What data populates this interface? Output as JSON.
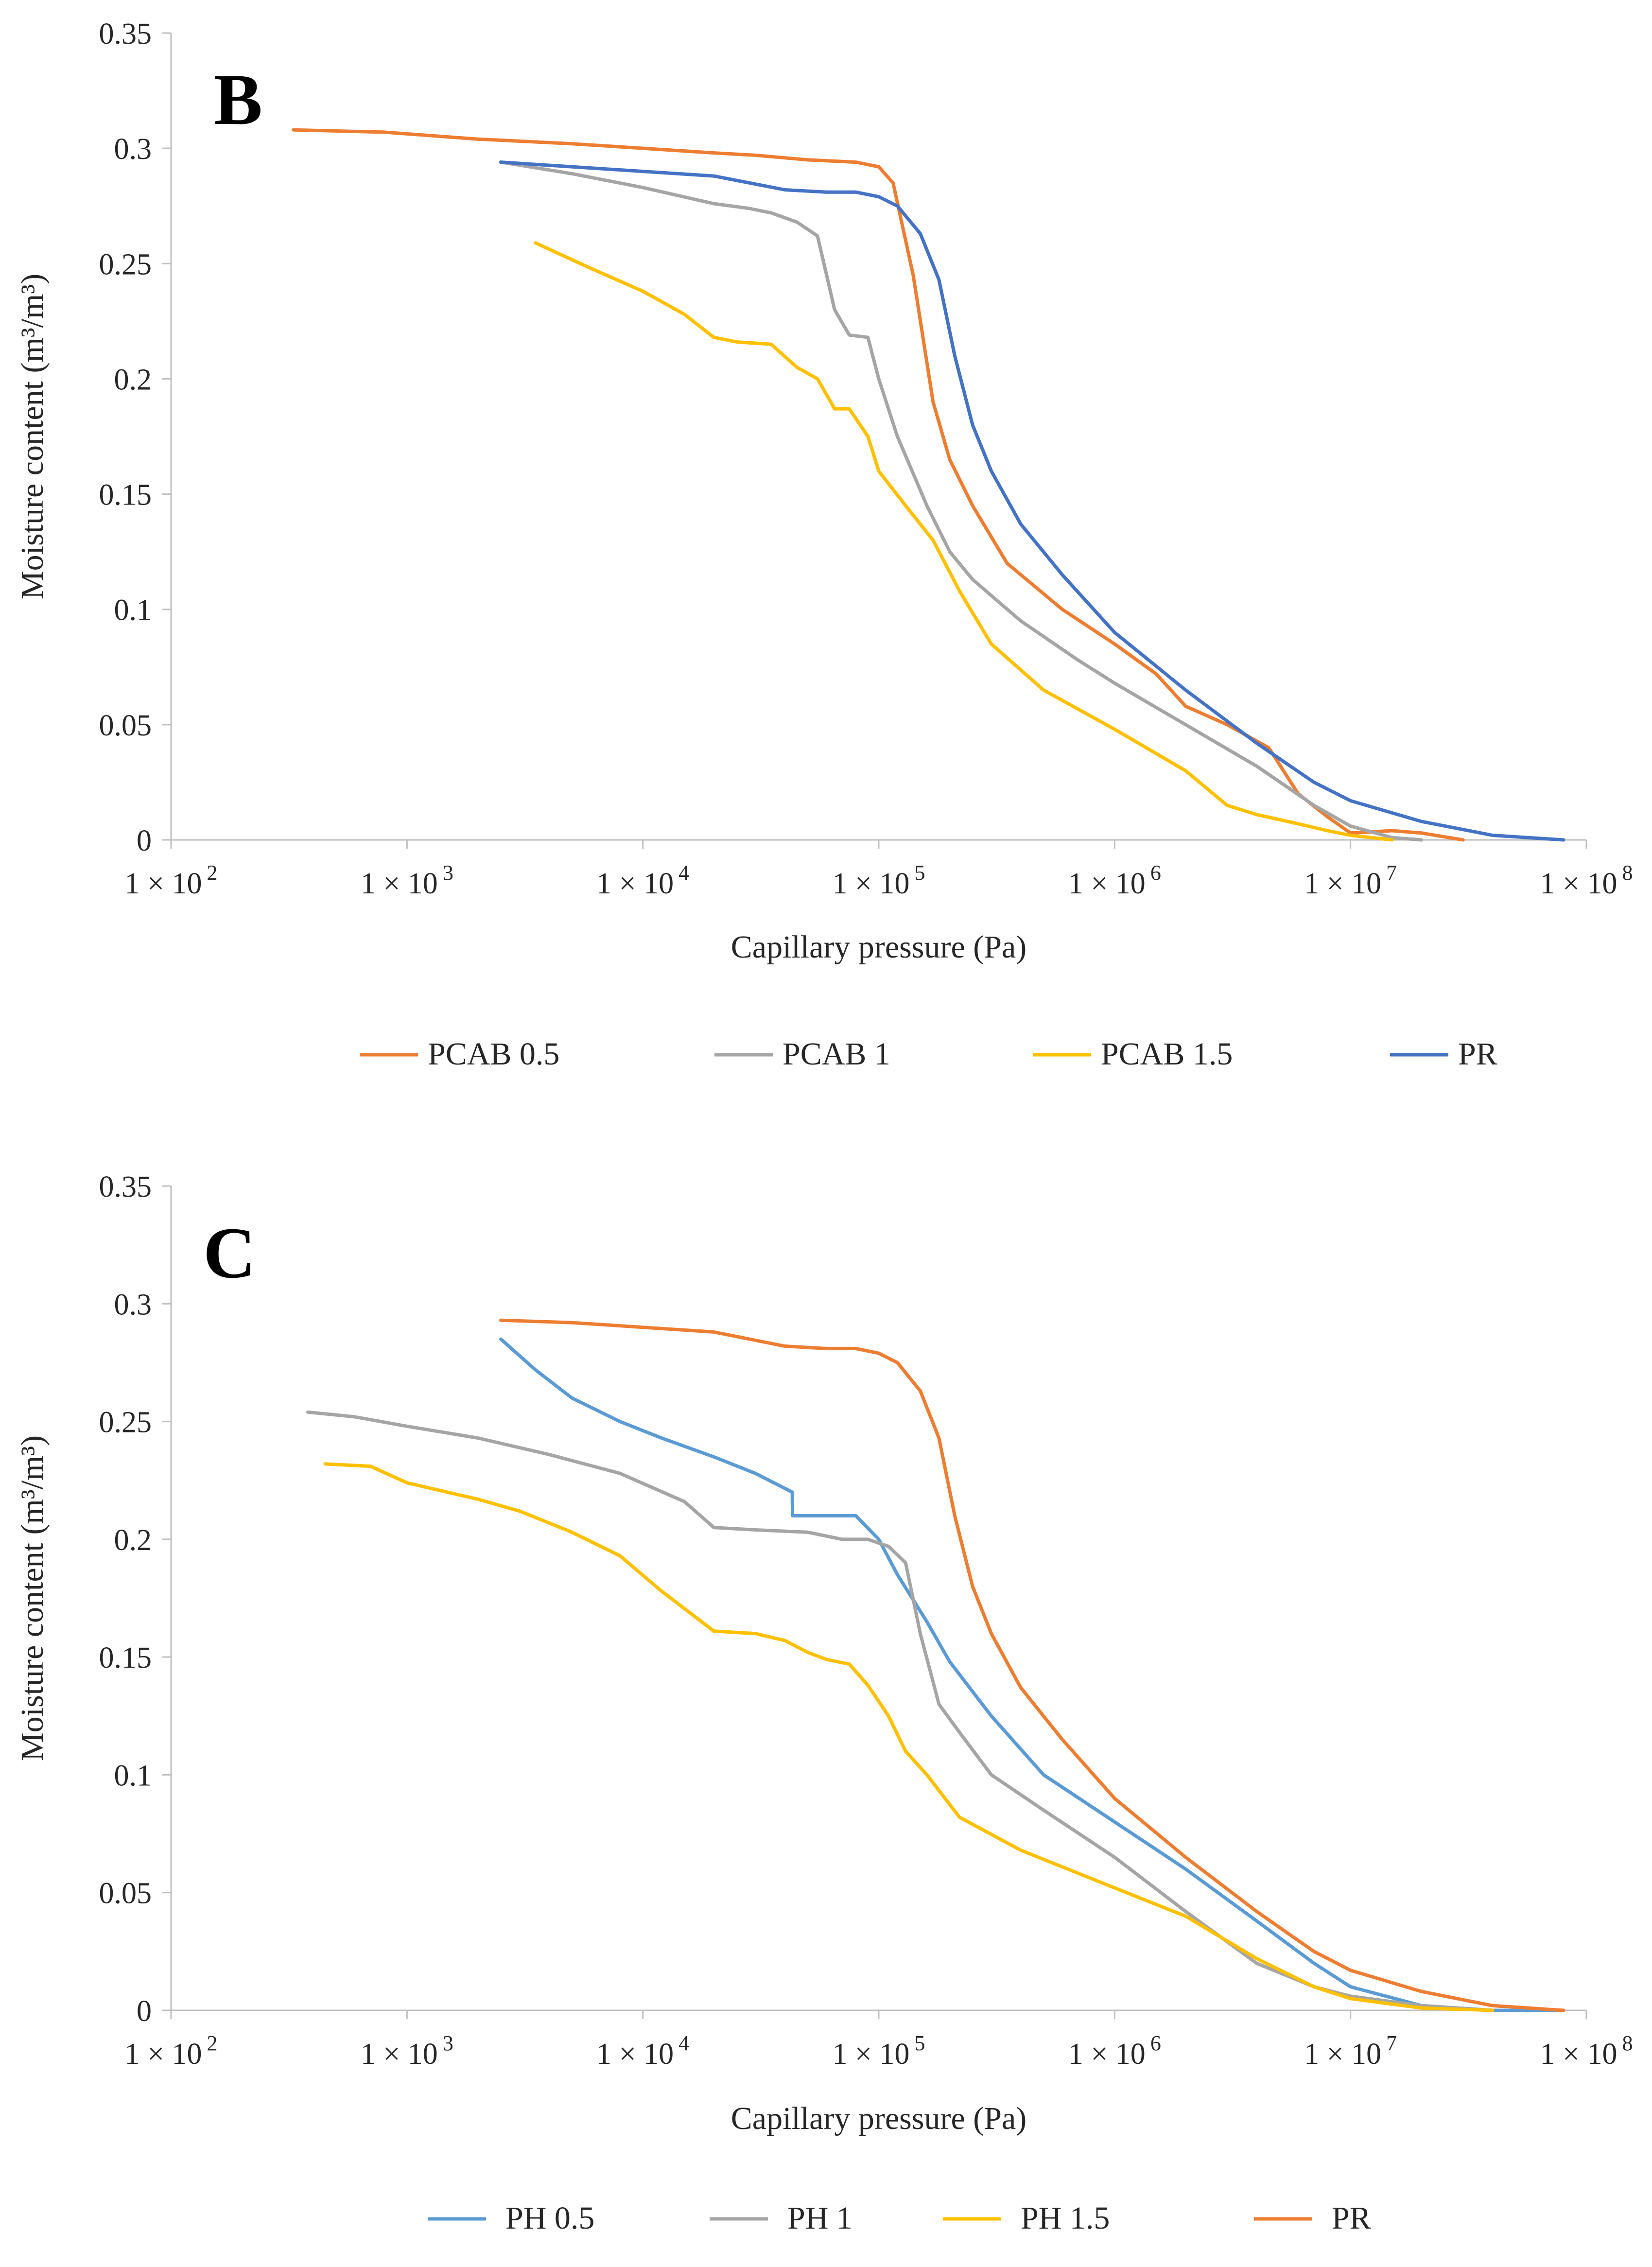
{
  "chart_data": [
    {
      "type": "line",
      "panel_label": "B",
      "xlabel": "Capillary pressure (Pa)",
      "ylabel": "Moisture content (m³/m³)",
      "xscale": "log",
      "xlim": [
        100,
        100000000
      ],
      "ylim": [
        0,
        0.35
      ],
      "yticks": [
        "0",
        "0.05",
        "0.1",
        "0.15",
        "0.2",
        "0.25",
        "0.3",
        "0.35"
      ],
      "xticks": [
        {
          "base": "1 × 10",
          "exp": "2"
        },
        {
          "base": "1 × 10",
          "exp": "3"
        },
        {
          "base": "1 × 10",
          "exp": "4"
        },
        {
          "base": "1 × 10",
          "exp": "5"
        },
        {
          "base": "1 × 10",
          "exp": "6"
        },
        {
          "base": "1 × 10",
          "exp": "7"
        },
        {
          "base": "1 × 10",
          "exp": "8"
        }
      ],
      "legend_position": "bottom",
      "series": [
        {
          "name": "PCAB 0.5",
          "color": "#ED7D31",
          "x": [
            330,
            800,
            2000,
            5000,
            10000,
            20000,
            30000,
            50000,
            80000,
            100000,
            115000,
            140000,
            170000,
            200000,
            250000,
            350000,
            600000,
            1000000,
            1500000,
            2000000,
            3000000,
            4500000,
            6000000,
            8000000,
            10000000,
            15000000,
            20000000,
            30000000
          ],
          "y": [
            0.308,
            0.307,
            0.304,
            0.302,
            0.3,
            0.298,
            0.297,
            0.295,
            0.294,
            0.292,
            0.285,
            0.245,
            0.19,
            0.165,
            0.145,
            0.12,
            0.1,
            0.085,
            0.072,
            0.058,
            0.05,
            0.04,
            0.02,
            0.01,
            0.003,
            0.004,
            0.003,
            0.0
          ]
        },
        {
          "name": "PCAB 1",
          "color": "#A5A5A5",
          "x": [
            2500,
            5000,
            10000,
            20000,
            28000,
            35000,
            45000,
            55000,
            65000,
            75000,
            90000,
            100000,
            120000,
            160000,
            200000,
            250000,
            400000,
            700000,
            1000000,
            2000000,
            4000000,
            7000000,
            10000000,
            15000000,
            20000000
          ],
          "y": [
            0.294,
            0.289,
            0.283,
            0.276,
            0.274,
            0.272,
            0.268,
            0.262,
            0.23,
            0.219,
            0.218,
            0.2,
            0.175,
            0.145,
            0.125,
            0.113,
            0.095,
            0.078,
            0.068,
            0.05,
            0.032,
            0.015,
            0.006,
            0.001,
            0.0
          ]
        },
        {
          "name": "PCAB 1.5",
          "color": "#FFC000",
          "x": [
            3500,
            6000,
            10000,
            15000,
            20000,
            25000,
            35000,
            45000,
            55000,
            65000,
            75000,
            90000,
            100000,
            130000,
            170000,
            220000,
            300000,
            500000,
            1000000,
            2000000,
            3000000,
            4000000,
            6000000,
            8000000,
            10000000,
            15000000
          ],
          "y": [
            0.259,
            0.248,
            0.238,
            0.228,
            0.218,
            0.216,
            0.215,
            0.205,
            0.2,
            0.187,
            0.187,
            0.175,
            0.16,
            0.145,
            0.13,
            0.108,
            0.085,
            0.065,
            0.048,
            0.03,
            0.015,
            0.011,
            0.007,
            0.004,
            0.002,
            0.0
          ]
        },
        {
          "name": "PR",
          "color": "#4472C4",
          "x": [
            2500,
            5000,
            10000,
            20000,
            40000,
            60000,
            80000,
            100000,
            120000,
            150000,
            180000,
            210000,
            250000,
            300000,
            400000,
            600000,
            1000000,
            2000000,
            4000000,
            7000000,
            10000000,
            20000000,
            40000000,
            80000000
          ],
          "y": [
            0.294,
            0.292,
            0.29,
            0.288,
            0.282,
            0.281,
            0.281,
            0.279,
            0.275,
            0.263,
            0.243,
            0.21,
            0.18,
            0.16,
            0.137,
            0.115,
            0.09,
            0.065,
            0.042,
            0.025,
            0.017,
            0.008,
            0.002,
            0.0
          ]
        }
      ]
    },
    {
      "type": "line",
      "panel_label": "C",
      "xlabel": "Capillary pressure (Pa)",
      "ylabel": "Moisture content (m³/m³)",
      "xscale": "log",
      "xlim": [
        100,
        100000000
      ],
      "ylim": [
        0,
        0.35
      ],
      "yticks": [
        "0",
        "0.05",
        "0.1",
        "0.15",
        "0.2",
        "0.25",
        "0.3",
        "0.35"
      ],
      "xticks": [
        {
          "base": "1 × 10",
          "exp": "2"
        },
        {
          "base": "1 × 10",
          "exp": "3"
        },
        {
          "base": "1 × 10",
          "exp": "4"
        },
        {
          "base": "1 × 10",
          "exp": "5"
        },
        {
          "base": "1 × 10",
          "exp": "6"
        },
        {
          "base": "1 × 10",
          "exp": "7"
        },
        {
          "base": "1 × 10",
          "exp": "8"
        }
      ],
      "legend_position": "bottom",
      "series": [
        {
          "name": "PH 0.5",
          "color": "#5B9BD5",
          "x": [
            2500,
            3500,
            5000,
            8000,
            12000,
            20000,
            30000,
            43000,
            43100,
            60000,
            80000,
            100000,
            120000,
            160000,
            200000,
            300000,
            500000,
            1000000,
            2000000,
            4000000,
            7000000,
            10000000,
            20000000,
            40000000,
            80000000
          ],
          "y": [
            0.285,
            0.272,
            0.26,
            0.25,
            0.243,
            0.235,
            0.228,
            0.22,
            0.21,
            0.21,
            0.21,
            0.2,
            0.185,
            0.165,
            0.148,
            0.125,
            0.1,
            0.08,
            0.06,
            0.038,
            0.02,
            0.01,
            0.002,
            0.0,
            0.0
          ]
        },
        {
          "name": "PH 1",
          "color": "#A5A5A5",
          "x": [
            380,
            600,
            1000,
            2000,
            4000,
            8000,
            15000,
            20000,
            30000,
            50000,
            70000,
            90000,
            110000,
            130000,
            150000,
            180000,
            220000,
            300000,
            500000,
            1000000,
            2000000,
            4000000,
            7000000,
            10000000,
            20000000,
            40000000
          ],
          "y": [
            0.254,
            0.252,
            0.248,
            0.243,
            0.236,
            0.228,
            0.216,
            0.205,
            0.204,
            0.203,
            0.2,
            0.2,
            0.197,
            0.19,
            0.16,
            0.13,
            0.118,
            0.1,
            0.085,
            0.065,
            0.042,
            0.02,
            0.01,
            0.006,
            0.002,
            0.0
          ]
        },
        {
          "name": "PH 1.5",
          "color": "#FFC000",
          "x": [
            450,
            700,
            1000,
            2000,
            3000,
            5000,
            8000,
            12000,
            20000,
            30000,
            40000,
            50000,
            60000,
            75000,
            90000,
            110000,
            130000,
            160000,
            220000,
            400000,
            1000000,
            2000000,
            4000000,
            7000000,
            10000000,
            20000000,
            40000000
          ],
          "y": [
            0.232,
            0.231,
            0.224,
            0.217,
            0.212,
            0.203,
            0.193,
            0.178,
            0.161,
            0.16,
            0.157,
            0.152,
            0.149,
            0.147,
            0.138,
            0.125,
            0.11,
            0.1,
            0.082,
            0.068,
            0.052,
            0.04,
            0.022,
            0.01,
            0.005,
            0.001,
            0.0
          ]
        },
        {
          "name": "PR",
          "color": "#ED7D31",
          "x": [
            2500,
            5000,
            10000,
            20000,
            40000,
            60000,
            80000,
            100000,
            120000,
            150000,
            180000,
            210000,
            250000,
            300000,
            400000,
            600000,
            1000000,
            2000000,
            4000000,
            7000000,
            10000000,
            20000000,
            40000000,
            80000000
          ],
          "y": [
            0.293,
            0.292,
            0.29,
            0.288,
            0.282,
            0.281,
            0.281,
            0.279,
            0.275,
            0.263,
            0.243,
            0.21,
            0.18,
            0.16,
            0.137,
            0.115,
            0.09,
            0.065,
            0.042,
            0.025,
            0.017,
            0.008,
            0.002,
            0.0
          ]
        }
      ]
    }
  ]
}
